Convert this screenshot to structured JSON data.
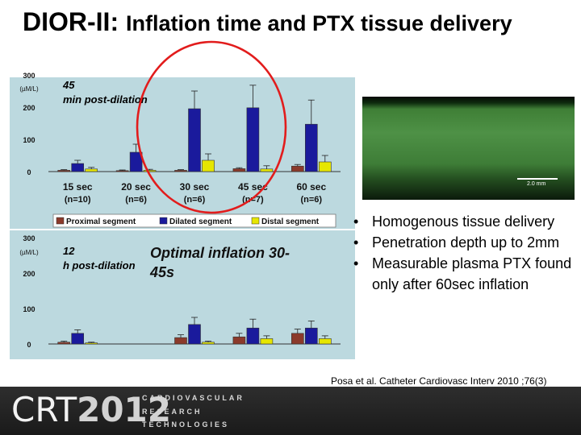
{
  "slide": {
    "title_main": "DIOR-II:",
    "title_rest": "Inflation time and PTX tissue delivery",
    "bullets": [
      "Homogenous tissue delivery",
      "Penetration depth up to 2mm",
      "Measurable plasma PTX found only after 60sec inflation"
    ],
    "citation": "Posa et al. Catheter Cardiovasc Interv 2010 ;76(3)",
    "micrograph": {
      "scale_label": "2.0 mm"
    },
    "logo": {
      "main": "CRT",
      "year": "2012",
      "lines": [
        "CARDIOVASCULAR",
        "RESEARCH",
        "TECHNOLOGIES"
      ]
    }
  },
  "colors": {
    "chart_bg": "#bcd9df",
    "proximal": "#8b3a2b",
    "dilated": "#1a1a9c",
    "distal": "#e6e600",
    "highlight_circle": "#e21c1c"
  },
  "chart_data": [
    {
      "type": "bar",
      "title": "45 min post-dilation",
      "ylabel": "(µM/L)",
      "ylim": [
        0,
        300
      ],
      "yticks": [
        0,
        100,
        200,
        300
      ],
      "categories": [
        "15 sec (n=10)",
        "20 sec (n=6)",
        "30 sec (n=6)",
        "45 sec (n=7)",
        "60 sec (n=6)"
      ],
      "category_lines": [
        [
          "15 sec",
          "(n=10)"
        ],
        [
          "20 sec",
          "(n=6)"
        ],
        [
          "30 sec",
          "(n=6)"
        ],
        [
          "45 sec",
          "(n=7)"
        ],
        [
          "60 sec",
          "(n=6)"
        ]
      ],
      "series": [
        {
          "name": "Proximal segment",
          "values": [
            4,
            3,
            4,
            9,
            17
          ],
          "errors": [
            2,
            2,
            2,
            3,
            5
          ]
        },
        {
          "name": "Dilated segment",
          "values": [
            25,
            60,
            195,
            198,
            147
          ],
          "errors": [
            10,
            25,
            55,
            70,
            75
          ]
        },
        {
          "name": "Distal segment",
          "values": [
            8,
            4,
            35,
            8,
            30
          ],
          "errors": [
            5,
            3,
            20,
            10,
            20
          ]
        }
      ],
      "legend": "bottom",
      "annotation": "highlight circle around 30 sec and 45 sec",
      "grid": false
    },
    {
      "type": "bar",
      "title": "12 h post-dilation",
      "ylabel": "(µM/L)",
      "ylim": [
        0,
        300
      ],
      "yticks": [
        0,
        100,
        200,
        300
      ],
      "categories": [
        "15 sec",
        "20 sec",
        "30 sec",
        "45 sec",
        "60 sec"
      ],
      "series": [
        {
          "name": "Proximal segment",
          "values": [
            5,
            0,
            18,
            20,
            30
          ],
          "errors": [
            3,
            0,
            8,
            10,
            12
          ]
        },
        {
          "name": "Dilated segment",
          "values": [
            30,
            0,
            55,
            45,
            45
          ],
          "errors": [
            10,
            0,
            20,
            25,
            20
          ]
        },
        {
          "name": "Distal segment",
          "values": [
            3,
            0,
            5,
            15,
            15
          ],
          "errors": [
            2,
            0,
            3,
            8,
            8
          ]
        }
      ],
      "annotation": "Optimal inflation 30-45s",
      "grid": false
    }
  ]
}
